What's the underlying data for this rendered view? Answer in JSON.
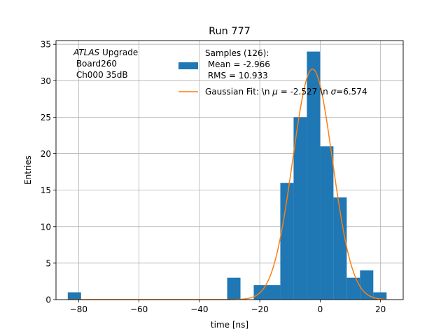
{
  "chart_data": {
    "type": "bar",
    "title": "Run 777",
    "xlabel": "time [ns]",
    "ylabel": "Entries",
    "xlim": [
      -87.5,
      27.5
    ],
    "ylim": [
      0,
      35.5
    ],
    "xticks": [
      -80,
      -60,
      -40,
      -20,
      0,
      20
    ],
    "yticks": [
      0,
      5,
      10,
      15,
      20,
      25,
      30,
      35
    ],
    "grid": true,
    "annotation": {
      "line1_italic": "ATLAS",
      "line1_rest": " Upgrade",
      "line2": " Board260",
      "line3": " Ch000 35dB"
    },
    "histogram": {
      "color": "#1f77b4",
      "bin_edges": [
        -83.6,
        -79.2,
        -74.8,
        -70.4,
        -66.0,
        -61.6,
        -57.2,
        -52.8,
        -48.4,
        -44.0,
        -39.6,
        -35.2,
        -30.8,
        -26.4,
        -22.0,
        -17.6,
        -13.2,
        -8.8,
        -4.4,
        0.0,
        4.4,
        8.8,
        13.2,
        17.6,
        22.0
      ],
      "counts": [
        1,
        0,
        0,
        0,
        0,
        0,
        0,
        0,
        0,
        0,
        0,
        0,
        3,
        0,
        2,
        2,
        16,
        25,
        34,
        21,
        14,
        3,
        4,
        1
      ]
    },
    "fit": {
      "color": "#ff7f0e",
      "amplitude": 31.6,
      "mu": -2.527,
      "sigma": 6.574,
      "x_range": [
        -83.6,
        22.0
      ]
    },
    "legend": {
      "location": "upper right",
      "hist_label": [
        "Samples (126):",
        " Mean = -2.966",
        " RMS = 10.933"
      ],
      "fit_label_pre": "Gaussian Fit: \\n ",
      "fit_mu_sym": "μ",
      "fit_label_mid": " = -2.527 \\n ",
      "fit_sigma_sym": "σ",
      "fit_label_post": "=6.574"
    }
  }
}
